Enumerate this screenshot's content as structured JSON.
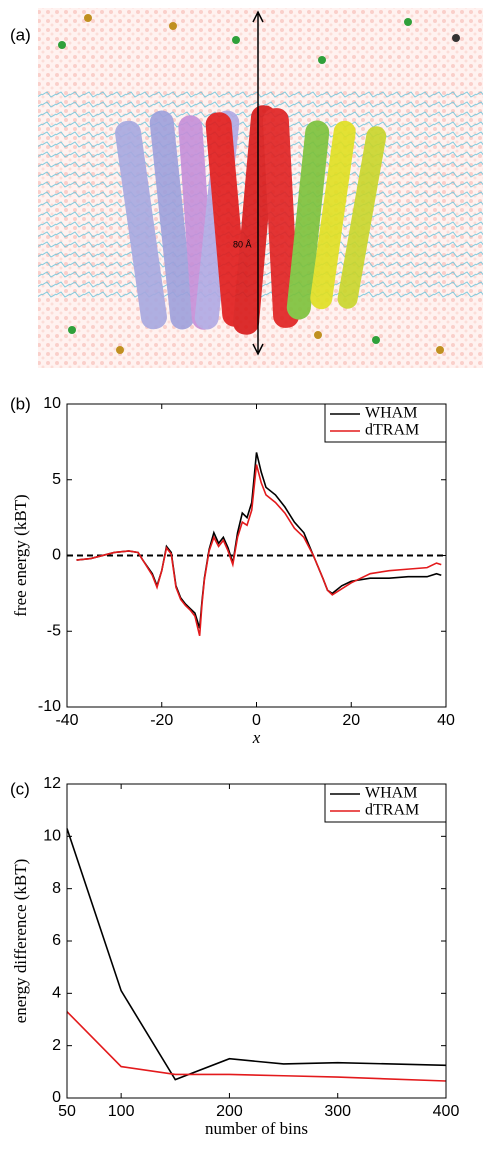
{
  "panel_a": {
    "label": "(a)",
    "scale_label": "80 Å"
  },
  "chart_data": [
    {
      "type": "line",
      "panel_label": "(b)",
      "xlabel": "x",
      "ylabel": "free energy (kBT)",
      "x": [
        -38,
        -35,
        -30,
        -27,
        -25,
        -24,
        -22,
        -21,
        -20,
        -19,
        -18,
        -17,
        -16,
        -15,
        -14,
        -13,
        -12,
        -11.5,
        -11,
        -10,
        -9,
        -8,
        -7,
        -6,
        -5,
        -4,
        -3,
        -2,
        -1,
        0,
        1,
        2,
        4,
        6,
        8,
        10,
        12,
        14,
        15,
        16,
        18,
        20,
        24,
        28,
        32,
        36,
        38,
        39
      ],
      "series": [
        {
          "name": "WHAM",
          "color": "#000000",
          "values": [
            -0.3,
            -0.2,
            0.2,
            0.3,
            0.2,
            -0.3,
            -1.2,
            -2.0,
            -1.0,
            0.6,
            0.2,
            -2.0,
            -2.8,
            -3.2,
            -3.5,
            -3.8,
            -4.8,
            -3.0,
            -1.5,
            0.4,
            1.5,
            0.8,
            1.2,
            0.5,
            -0.5,
            1.5,
            2.8,
            2.5,
            3.5,
            6.8,
            5.5,
            4.5,
            4.0,
            3.2,
            2.2,
            1.5,
            0.0,
            -1.5,
            -2.3,
            -2.5,
            -2.0,
            -1.7,
            -1.5,
            -1.5,
            -1.4,
            -1.4,
            -1.2,
            -1.3
          ]
        },
        {
          "name": "dTRAM",
          "color": "#e31a1c",
          "values": [
            -0.3,
            -0.2,
            0.2,
            0.3,
            0.2,
            -0.3,
            -1.3,
            -2.1,
            -1.0,
            0.5,
            0.1,
            -2.1,
            -2.9,
            -3.3,
            -3.6,
            -4.0,
            -5.3,
            -3.2,
            -1.6,
            0.3,
            1.2,
            0.6,
            1.0,
            0.3,
            -0.6,
            1.2,
            2.2,
            2.0,
            3.0,
            6.0,
            4.8,
            4.0,
            3.5,
            2.8,
            1.8,
            1.2,
            0.0,
            -1.5,
            -2.3,
            -2.6,
            -2.2,
            -1.8,
            -1.2,
            -1.0,
            -0.9,
            -0.8,
            -0.5,
            -0.6
          ]
        }
      ],
      "reference_line": 0,
      "xlim": [
        -40,
        40
      ],
      "xticks": [
        -40,
        -20,
        0,
        20,
        40
      ],
      "ylim": [
        -10,
        10
      ],
      "yticks": [
        -10,
        -5,
        0,
        5,
        10
      ],
      "legend": "upper right"
    },
    {
      "type": "line",
      "panel_label": "(c)",
      "xlabel": "number of bins",
      "ylabel": "energy difference (kBT)",
      "x": [
        50,
        100,
        150,
        200,
        250,
        300,
        400
      ],
      "series": [
        {
          "name": "WHAM",
          "color": "#000000",
          "values": [
            10.3,
            4.1,
            0.7,
            1.5,
            1.3,
            1.35,
            1.25
          ]
        },
        {
          "name": "dTRAM",
          "color": "#e31a1c",
          "values": [
            3.3,
            1.2,
            0.9,
            0.9,
            0.85,
            0.8,
            0.65
          ]
        }
      ],
      "xlim": [
        50,
        400
      ],
      "xticks": [
        50,
        100,
        200,
        300,
        400
      ],
      "ylim": [
        0,
        12
      ],
      "yticks": [
        0,
        2,
        4,
        6,
        8,
        10,
        12
      ],
      "legend": "upper right"
    }
  ]
}
